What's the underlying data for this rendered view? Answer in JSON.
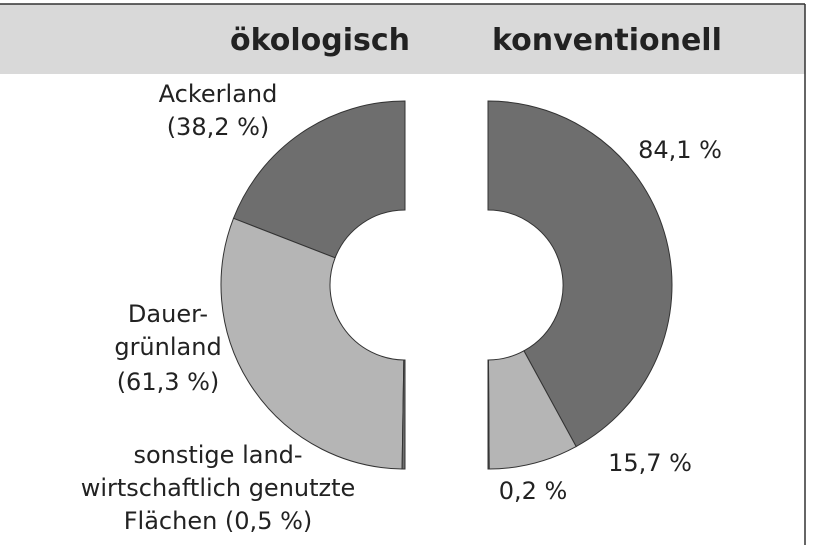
{
  "chart_data": [
    {
      "type": "pie",
      "title": "ökologisch",
      "labels": [
        [
          "Ackerland",
          "(38,2 %)"
        ],
        [
          "Dauer-",
          "grünland",
          "(61,3 %)"
        ],
        [
          "sonstige land-",
          "wirtschaftlich genutzte",
          "Flächen (0,5 %)"
        ]
      ],
      "values": [
        38.2,
        61.3,
        0.5
      ],
      "colors": [
        "#6e6e6e",
        "#b5b5b5",
        "#6e6e6e"
      ]
    },
    {
      "type": "pie",
      "title": "konventionell",
      "value_labels": [
        "84,1 %",
        "15,7 %",
        "0,2 %"
      ],
      "values": [
        84.1,
        15.7,
        0.2
      ],
      "colors": [
        "#6e6e6e",
        "#b5b5b5",
        "#6e6e6e"
      ]
    }
  ]
}
